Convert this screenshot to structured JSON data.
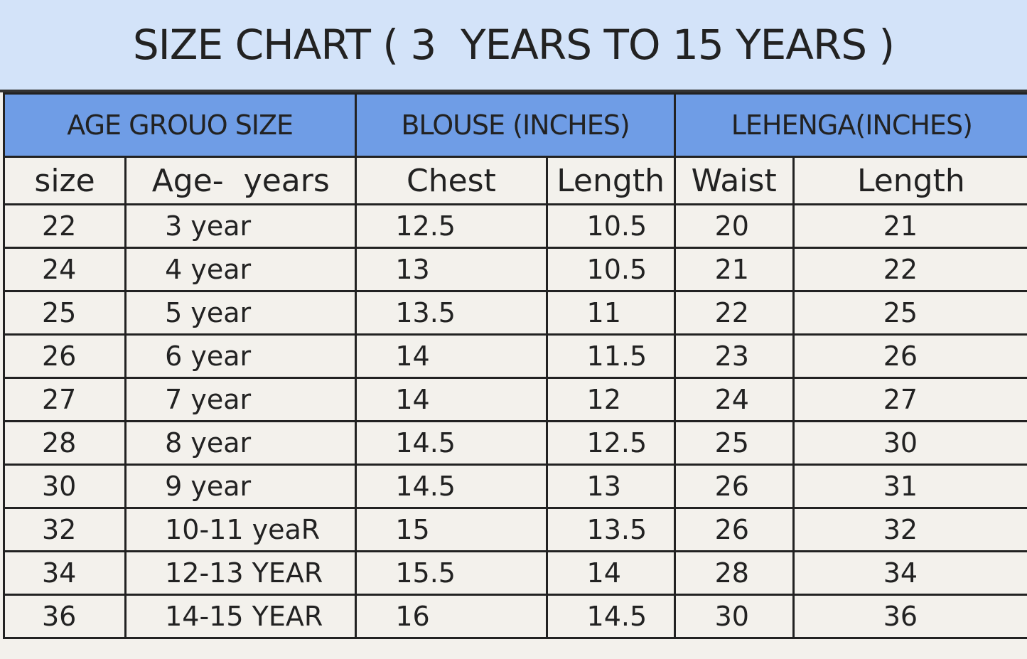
{
  "title": "SIZE CHART ( 3  YEARS TO 15 YEARS )",
  "table": {
    "groups": [
      "AGE GROUO SIZE",
      "BLOUSE (INCHES)",
      "LEHENGA(INCHES)"
    ],
    "columns": [
      "size",
      "Age-  years",
      "Chest",
      "Length",
      "Waist",
      "Length"
    ],
    "rows": [
      [
        "22",
        "3 year",
        "12.5",
        "10.5",
        "20",
        "21"
      ],
      [
        "24",
        "4 year",
        "13",
        "10.5",
        "21",
        "22"
      ],
      [
        "25",
        "5 year",
        "13.5",
        "11",
        "22",
        "25"
      ],
      [
        "26",
        "6 year",
        "14",
        "11.5",
        "23",
        "26"
      ],
      [
        "27",
        "7 year",
        "14",
        "12",
        "24",
        "27"
      ],
      [
        "28",
        "8 year",
        "14.5",
        "12.5",
        "25",
        "30"
      ],
      [
        "30",
        "9 year",
        "14.5",
        "13",
        "26",
        "31"
      ],
      [
        "32",
        "10-11 yeaR",
        "15",
        "13.5",
        "26",
        "32"
      ],
      [
        "34",
        "12-13 YEAR",
        "15.5",
        "14",
        "28",
        "34"
      ],
      [
        "36",
        "14-15 YEAR",
        "16",
        "14.5",
        "30",
        "36"
      ]
    ]
  }
}
